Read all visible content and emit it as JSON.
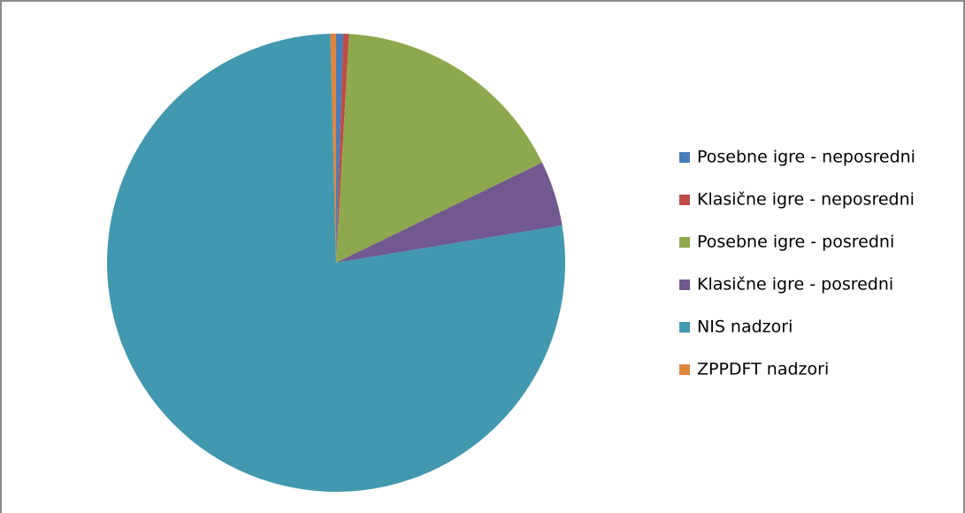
{
  "chart_data": {
    "type": "pie",
    "categories": [
      "Posebne igre - neposredni",
      "Klasične igre - neposredni",
      "Posebne igre - posredni",
      "Klasične igre - posredni",
      "NIS nadzori",
      "ZPPDFT nadzori"
    ],
    "values": [
      0.5,
      0.4,
      16.9,
      4.6,
      77.2,
      0.4
    ],
    "colors": [
      "#4a7ebb",
      "#be4b48",
      "#8ea84d",
      "#71588f",
      "#4198af",
      "#e0853c"
    ],
    "legend": "right"
  }
}
